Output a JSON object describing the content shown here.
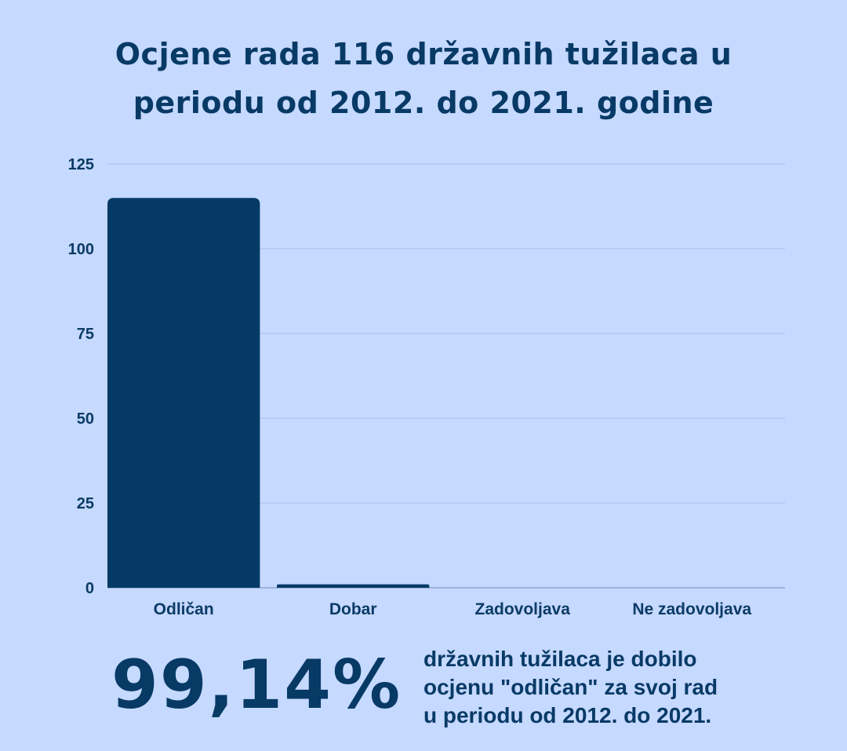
{
  "title": {
    "line1": "Ocjene rada 116 državnih tužilaca u",
    "line2": "periodu od 2012. do 2021. godine"
  },
  "chart_data": {
    "type": "bar",
    "categories": [
      "Odličan",
      "Dobar",
      "Zadovoljava",
      "Ne zadovoljava"
    ],
    "values": [
      115,
      1,
      0,
      0
    ],
    "ylim": [
      0,
      125
    ],
    "yticks": [
      0,
      25,
      50,
      75,
      100,
      125
    ],
    "grid": true,
    "colors": {
      "bar": "#063a66",
      "grid": "#a9bde8",
      "baseline": "#8fa6d6"
    }
  },
  "summary": {
    "percent": "99,14%",
    "line1": "državnih tužilaca je dobilo",
    "line2": "ocjenu \"odličan\" za svoj rad",
    "line3": "u periodu od 2012. do 2021."
  },
  "colors": {
    "background": "#c6d9ff",
    "text": "#083a66"
  }
}
